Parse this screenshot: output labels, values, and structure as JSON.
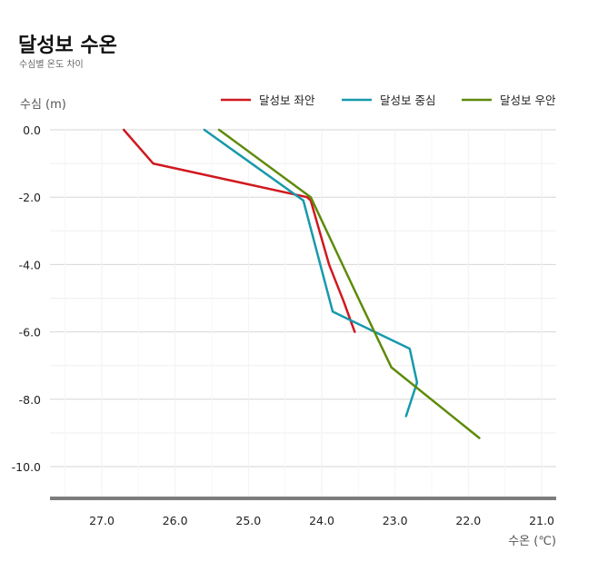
{
  "header": {
    "title": "달성보 수온",
    "subtitle": "수심별 온도 차이"
  },
  "chart_data": {
    "type": "line",
    "title": "달성보 수온",
    "subtitle": "수심별 온도 차이",
    "xlabel": "수온 (℃)",
    "ylabel": "수심 (m)",
    "xlim": [
      27.7,
      21.0
    ],
    "ylim": [
      -10.9,
      0.0
    ],
    "x_reversed": true,
    "x_ticks": [
      27.0,
      26.0,
      25.0,
      24.0,
      23.0,
      22.0,
      21.0
    ],
    "x_tick_labels": [
      "27.0",
      "26.0",
      "25.0",
      "24.0",
      "23.0",
      "22.0",
      "21.0"
    ],
    "y_ticks": [
      0.0,
      -2.0,
      -4.0,
      -6.0,
      -8.0,
      -10.0
    ],
    "y_tick_labels": [
      "0.0",
      "-2.0",
      "-4.0",
      "-6.0",
      "-8.0",
      "-10.0"
    ],
    "grid": true,
    "legend_position": "top-right",
    "series": [
      {
        "name": "달성보 좌안",
        "color": "#d0191f",
        "points": [
          [
            26.7,
            0.0
          ],
          [
            26.3,
            -1.0
          ],
          [
            24.2,
            -2.0
          ],
          [
            24.15,
            -2.1
          ],
          [
            23.9,
            -4.0
          ],
          [
            23.7,
            -5.1
          ],
          [
            23.55,
            -6.0
          ]
        ]
      },
      {
        "name": "달성보 중심",
        "color": "#1799ab",
        "points": [
          [
            25.6,
            0.0
          ],
          [
            24.25,
            -2.1
          ],
          [
            23.85,
            -5.4
          ],
          [
            22.8,
            -6.5
          ],
          [
            22.7,
            -7.5
          ],
          [
            22.85,
            -8.5
          ]
        ]
      },
      {
        "name": "달성보 우안",
        "color": "#5e8a0a",
        "points": [
          [
            25.4,
            0.0
          ],
          [
            24.15,
            -2.0
          ],
          [
            23.5,
            -5.0
          ],
          [
            23.05,
            -7.05
          ],
          [
            21.85,
            -9.15
          ]
        ]
      }
    ]
  }
}
